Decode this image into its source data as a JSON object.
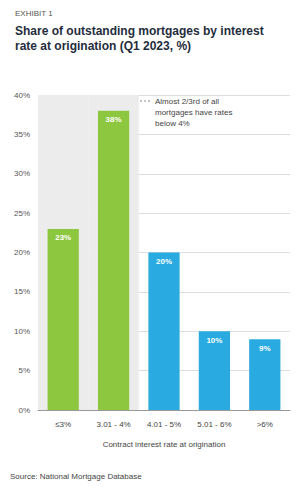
{
  "chart_data": {
    "type": "bar",
    "subtitle": "EXHIBIT 1",
    "title": "Share of outstanding mortgages by interest rate at origination (Q1 2023, %)",
    "xlabel": "Contract interest rate at origination",
    "source": "Source: National Mortgage Database",
    "annotation": {
      "text": "Almost 2/3rd of all mortgages have rates below 4%",
      "span": [
        "≤3%",
        "3.01 - 4%"
      ]
    },
    "categories": [
      "≤3%",
      "3.01 - 4%",
      "4.01 - 5%",
      "5.01 - 6%",
      ">6%"
    ],
    "values": [
      23,
      38,
      20,
      10,
      9
    ],
    "value_labels": [
      "23%",
      "38%",
      "20%",
      "10%",
      "9%"
    ],
    "colors": [
      "#8dc63f",
      "#8dc63f",
      "#29abe2",
      "#29abe2",
      "#29abe2"
    ],
    "data_labels": true,
    "ylim": [
      0,
      40
    ],
    "yticks": [
      {
        "value": 0,
        "label": "0%"
      },
      {
        "value": 5,
        "label": "5%"
      },
      {
        "value": 10,
        "label": "10%"
      },
      {
        "value": 15,
        "label": "15%"
      },
      {
        "value": 20,
        "label": "20%"
      },
      {
        "value": 25,
        "label": "25%"
      },
      {
        "value": 30,
        "label": "30%"
      },
      {
        "value": 35,
        "label": "35%"
      },
      {
        "value": 40,
        "label": "40%"
      }
    ],
    "grid": true
  }
}
